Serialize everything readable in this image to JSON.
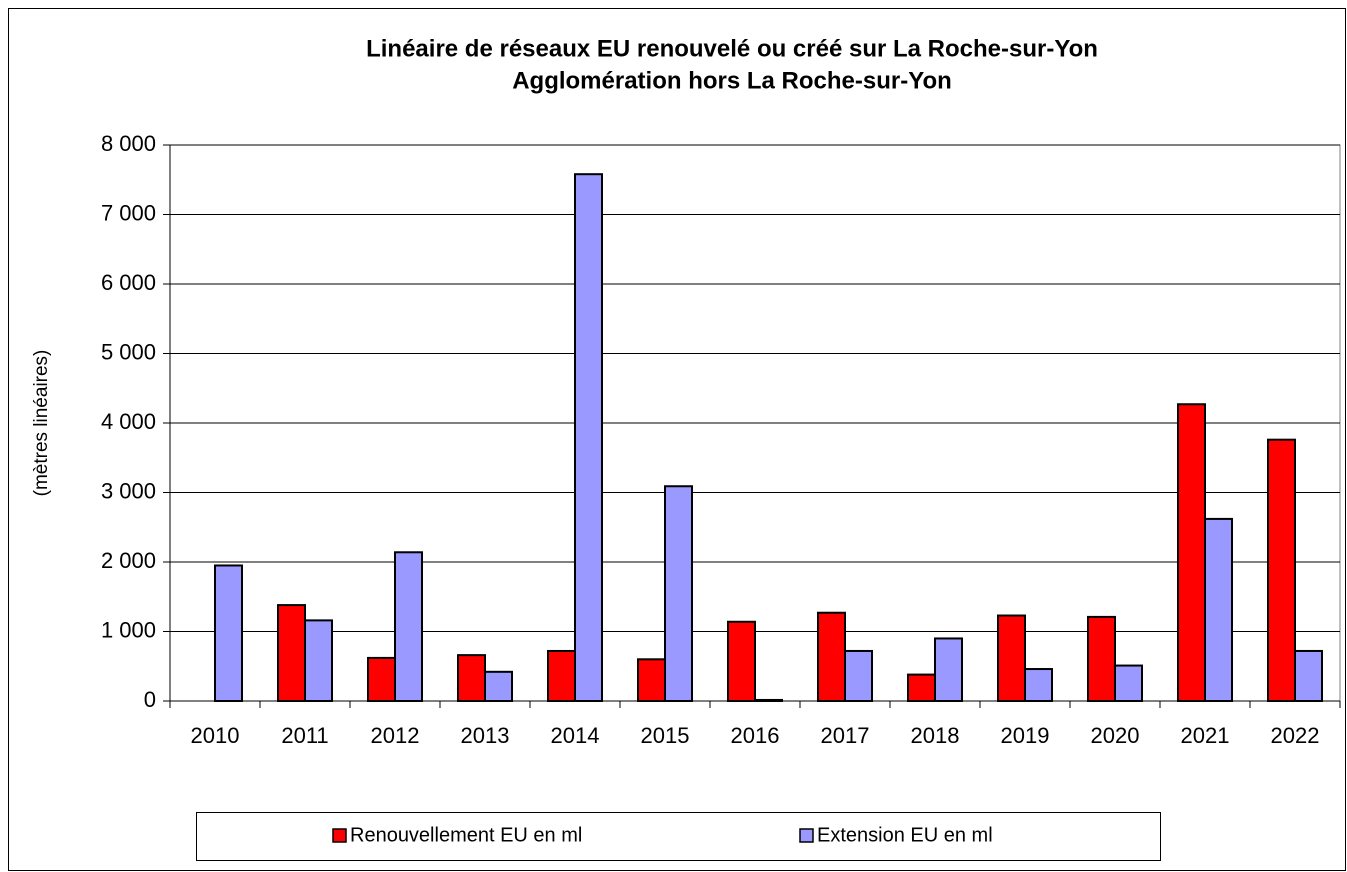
{
  "chart_data": {
    "type": "bar",
    "title": "Linéaire de réseaux EU renouvelé ou créé sur La Roche-sur-Yon",
    "subtitle": "Agglomération hors La Roche-sur-Yon",
    "y_label": "(mètres linéaires)",
    "categories": [
      "2010",
      "2011",
      "2012",
      "2013",
      "2014",
      "2015",
      "2016",
      "2017",
      "2018",
      "2019",
      "2020",
      "2021",
      "2022"
    ],
    "series": [
      {
        "name": "Renouvellement EU en ml",
        "color": "#ff0000",
        "values": [
          0,
          1380,
          620,
          660,
          720,
          600,
          1140,
          1270,
          380,
          1230,
          1210,
          4270,
          3760
        ]
      },
      {
        "name": "Extension EU en ml",
        "color": "#9999ff",
        "values": [
          1950,
          1160,
          2140,
          420,
          7580,
          3090,
          15,
          720,
          900,
          460,
          510,
          2620,
          720
        ]
      }
    ],
    "ylim": [
      0,
      8000
    ],
    "yticks": [
      0,
      {
        "value": 1000,
        "label": "1 000"
      },
      {
        "value": 2000,
        "label": "2 000"
      },
      {
        "value": 3000,
        "label": "3 000"
      },
      {
        "value": 4000,
        "label": "4 000"
      },
      {
        "value": 5000,
        "label": "5 000"
      },
      {
        "value": 6000,
        "label": "6 000"
      },
      {
        "value": 7000,
        "label": "7 000"
      },
      {
        "value": 8000,
        "label": "8 000"
      }
    ],
    "grid": true,
    "legend": "bottom"
  }
}
